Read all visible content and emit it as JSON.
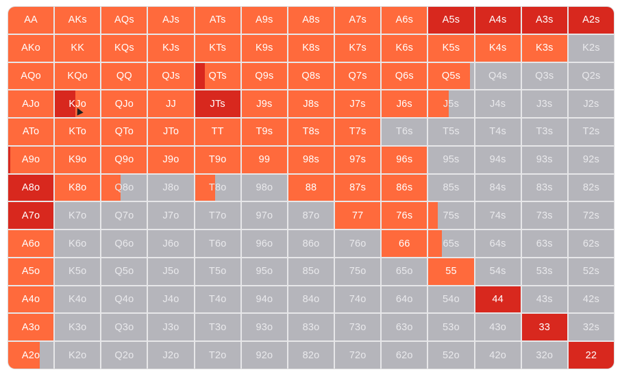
{
  "palette": {
    "orange": "#ff6a3c",
    "red": "#d8281e",
    "mid": "#ea4a2e",
    "gray": "#b5b5bb",
    "text_gray": "#e9e9ec"
  },
  "rows": [
    [
      {
        "l": "AA",
        "f": 1,
        "c": "orange"
      },
      {
        "l": "AKs",
        "f": 1,
        "c": "orange"
      },
      {
        "l": "AQs",
        "f": 1,
        "c": "orange"
      },
      {
        "l": "AJs",
        "f": 1,
        "c": "orange"
      },
      {
        "l": "ATs",
        "f": 1,
        "c": "orange"
      },
      {
        "l": "A9s",
        "f": 1,
        "c": "orange"
      },
      {
        "l": "A8s",
        "f": 1,
        "c": "orange"
      },
      {
        "l": "A7s",
        "f": 1,
        "c": "orange"
      },
      {
        "l": "A6s",
        "f": 1,
        "c": "orange"
      },
      {
        "l": "A5s",
        "f": 1,
        "c": "red"
      },
      {
        "l": "A4s",
        "f": 1,
        "c": "red"
      },
      {
        "l": "A3s",
        "f": 1,
        "c": "red"
      },
      {
        "l": "A2s",
        "f": 1,
        "c": "red"
      }
    ],
    [
      {
        "l": "AKo",
        "f": 1,
        "c": "orange"
      },
      {
        "l": "KK",
        "f": 1,
        "c": "orange"
      },
      {
        "l": "KQs",
        "f": 1,
        "c": "orange"
      },
      {
        "l": "KJs",
        "f": 1,
        "c": "orange"
      },
      {
        "l": "KTs",
        "f": 1,
        "c": "orange"
      },
      {
        "l": "K9s",
        "f": 1,
        "c": "orange"
      },
      {
        "l": "K8s",
        "f": 1,
        "c": "orange"
      },
      {
        "l": "K7s",
        "f": 1,
        "c": "orange"
      },
      {
        "l": "K6s",
        "f": 1,
        "c": "orange"
      },
      {
        "l": "K5s",
        "f": 1,
        "c": "orange"
      },
      {
        "l": "K4s",
        "f": 1,
        "c": "orange"
      },
      {
        "l": "K3s",
        "f": 1,
        "c": "orange"
      },
      {
        "l": "K2s",
        "f": 0,
        "c": "gray"
      }
    ],
    [
      {
        "l": "AQo",
        "f": 1,
        "c": "orange"
      },
      {
        "l": "KQo",
        "f": 1,
        "c": "orange"
      },
      {
        "l": "QQ",
        "f": 1,
        "c": "orange"
      },
      {
        "l": "QJs",
        "f": 1,
        "c": "orange"
      },
      {
        "l": "QTs",
        "f": 1,
        "c": "orange",
        "r": 0.22
      },
      {
        "l": "Q9s",
        "f": 1,
        "c": "orange"
      },
      {
        "l": "Q8s",
        "f": 1,
        "c": "orange"
      },
      {
        "l": "Q7s",
        "f": 1,
        "c": "orange"
      },
      {
        "l": "Q6s",
        "f": 1,
        "c": "orange"
      },
      {
        "l": "Q5s",
        "f": 0.92,
        "c": "orange"
      },
      {
        "l": "Q4s",
        "f": 0,
        "c": "gray"
      },
      {
        "l": "Q3s",
        "f": 0,
        "c": "gray"
      },
      {
        "l": "Q2s",
        "f": 0,
        "c": "gray"
      }
    ],
    [
      {
        "l": "AJo",
        "f": 1,
        "c": "orange"
      },
      {
        "l": "KJo",
        "f": 1,
        "c": "orange",
        "r": 0.45
      },
      {
        "l": "QJo",
        "f": 1,
        "c": "orange"
      },
      {
        "l": "JJ",
        "f": 1,
        "c": "orange"
      },
      {
        "l": "JTs",
        "f": 1,
        "c": "red"
      },
      {
        "l": "J9s",
        "f": 1,
        "c": "orange"
      },
      {
        "l": "J8s",
        "f": 1,
        "c": "orange"
      },
      {
        "l": "J7s",
        "f": 1,
        "c": "orange"
      },
      {
        "l": "J6s",
        "f": 1,
        "c": "orange"
      },
      {
        "l": "J5s",
        "f": 0.45,
        "c": "orange"
      },
      {
        "l": "J4s",
        "f": 0,
        "c": "gray"
      },
      {
        "l": "J3s",
        "f": 0,
        "c": "gray"
      },
      {
        "l": "J2s",
        "f": 0,
        "c": "gray"
      }
    ],
    [
      {
        "l": "ATo",
        "f": 1,
        "c": "orange"
      },
      {
        "l": "KTo",
        "f": 1,
        "c": "orange"
      },
      {
        "l": "QTo",
        "f": 1,
        "c": "orange"
      },
      {
        "l": "JTo",
        "f": 1,
        "c": "orange"
      },
      {
        "l": "TT",
        "f": 1,
        "c": "orange"
      },
      {
        "l": "T9s",
        "f": 1,
        "c": "orange"
      },
      {
        "l": "T8s",
        "f": 1,
        "c": "orange"
      },
      {
        "l": "T7s",
        "f": 1,
        "c": "orange"
      },
      {
        "l": "T6s",
        "f": 0,
        "c": "gray"
      },
      {
        "l": "T5s",
        "f": 0,
        "c": "gray"
      },
      {
        "l": "T4s",
        "f": 0,
        "c": "gray"
      },
      {
        "l": "T3s",
        "f": 0,
        "c": "gray"
      },
      {
        "l": "T2s",
        "f": 0,
        "c": "gray"
      }
    ],
    [
      {
        "l": "A9o",
        "f": 1,
        "c": "orange",
        "r": 0.04
      },
      {
        "l": "K9o",
        "f": 1,
        "c": "orange"
      },
      {
        "l": "Q9o",
        "f": 1,
        "c": "orange"
      },
      {
        "l": "J9o",
        "f": 1,
        "c": "orange"
      },
      {
        "l": "T9o",
        "f": 1,
        "c": "orange"
      },
      {
        "l": "99",
        "f": 1,
        "c": "orange"
      },
      {
        "l": "98s",
        "f": 1,
        "c": "orange"
      },
      {
        "l": "97s",
        "f": 1,
        "c": "orange"
      },
      {
        "l": "96s",
        "f": 1,
        "c": "orange"
      },
      {
        "l": "95s",
        "f": 0,
        "c": "gray"
      },
      {
        "l": "94s",
        "f": 0,
        "c": "gray"
      },
      {
        "l": "93s",
        "f": 0,
        "c": "gray"
      },
      {
        "l": "92s",
        "f": 0,
        "c": "gray"
      }
    ],
    [
      {
        "l": "A8o",
        "f": 1,
        "c": "red"
      },
      {
        "l": "K8o",
        "f": 1,
        "c": "orange"
      },
      {
        "l": "Q8o",
        "f": 0.42,
        "c": "orange"
      },
      {
        "l": "J8o",
        "f": 0,
        "c": "gray"
      },
      {
        "l": "T8o",
        "f": 0.45,
        "c": "orange"
      },
      {
        "l": "98o",
        "f": 0,
        "c": "gray"
      },
      {
        "l": "88",
        "f": 1,
        "c": "orange"
      },
      {
        "l": "87s",
        "f": 1,
        "c": "orange"
      },
      {
        "l": "86s",
        "f": 1,
        "c": "orange"
      },
      {
        "l": "85s",
        "f": 0,
        "c": "gray"
      },
      {
        "l": "84s",
        "f": 0,
        "c": "gray"
      },
      {
        "l": "83s",
        "f": 0,
        "c": "gray"
      },
      {
        "l": "82s",
        "f": 0,
        "c": "gray"
      }
    ],
    [
      {
        "l": "A7o",
        "f": 1,
        "c": "red"
      },
      {
        "l": "K7o",
        "f": 0,
        "c": "gray"
      },
      {
        "l": "Q7o",
        "f": 0,
        "c": "gray"
      },
      {
        "l": "J7o",
        "f": 0,
        "c": "gray"
      },
      {
        "l": "T7o",
        "f": 0,
        "c": "gray"
      },
      {
        "l": "97o",
        "f": 0,
        "c": "gray"
      },
      {
        "l": "87o",
        "f": 0,
        "c": "gray"
      },
      {
        "l": "77",
        "f": 1,
        "c": "orange"
      },
      {
        "l": "76s",
        "f": 1,
        "c": "orange"
      },
      {
        "l": "75s",
        "f": 0.2,
        "c": "orange"
      },
      {
        "l": "74s",
        "f": 0,
        "c": "gray"
      },
      {
        "l": "73s",
        "f": 0,
        "c": "gray"
      },
      {
        "l": "72s",
        "f": 0,
        "c": "gray"
      }
    ],
    [
      {
        "l": "A6o",
        "f": 1,
        "c": "orange"
      },
      {
        "l": "K6o",
        "f": 0,
        "c": "gray"
      },
      {
        "l": "Q6o",
        "f": 0,
        "c": "gray"
      },
      {
        "l": "J6o",
        "f": 0,
        "c": "gray"
      },
      {
        "l": "T6o",
        "f": 0,
        "c": "gray"
      },
      {
        "l": "96o",
        "f": 0,
        "c": "gray"
      },
      {
        "l": "86o",
        "f": 0,
        "c": "gray"
      },
      {
        "l": "76o",
        "f": 0,
        "c": "gray"
      },
      {
        "l": "66",
        "f": 1,
        "c": "orange"
      },
      {
        "l": "65s",
        "f": 0.3,
        "c": "orange"
      },
      {
        "l": "64s",
        "f": 0,
        "c": "gray"
      },
      {
        "l": "63s",
        "f": 0,
        "c": "gray"
      },
      {
        "l": "62s",
        "f": 0,
        "c": "gray"
      }
    ],
    [
      {
        "l": "A5o",
        "f": 1,
        "c": "orange"
      },
      {
        "l": "K5o",
        "f": 0,
        "c": "gray"
      },
      {
        "l": "Q5o",
        "f": 0,
        "c": "gray"
      },
      {
        "l": "J5o",
        "f": 0,
        "c": "gray"
      },
      {
        "l": "T5o",
        "f": 0,
        "c": "gray"
      },
      {
        "l": "95o",
        "f": 0,
        "c": "gray"
      },
      {
        "l": "85o",
        "f": 0,
        "c": "gray"
      },
      {
        "l": "75o",
        "f": 0,
        "c": "gray"
      },
      {
        "l": "65o",
        "f": 0,
        "c": "gray"
      },
      {
        "l": "55",
        "f": 1,
        "c": "orange"
      },
      {
        "l": "54s",
        "f": 0,
        "c": "gray"
      },
      {
        "l": "53s",
        "f": 0,
        "c": "gray"
      },
      {
        "l": "52s",
        "f": 0,
        "c": "gray"
      }
    ],
    [
      {
        "l": "A4o",
        "f": 1,
        "c": "orange"
      },
      {
        "l": "K4o",
        "f": 0,
        "c": "gray"
      },
      {
        "l": "Q4o",
        "f": 0,
        "c": "gray"
      },
      {
        "l": "J4o",
        "f": 0,
        "c": "gray"
      },
      {
        "l": "T4o",
        "f": 0,
        "c": "gray"
      },
      {
        "l": "94o",
        "f": 0,
        "c": "gray"
      },
      {
        "l": "84o",
        "f": 0,
        "c": "gray"
      },
      {
        "l": "74o",
        "f": 0,
        "c": "gray"
      },
      {
        "l": "64o",
        "f": 0,
        "c": "gray"
      },
      {
        "l": "54o",
        "f": 0,
        "c": "gray"
      },
      {
        "l": "44",
        "f": 1,
        "c": "red"
      },
      {
        "l": "43s",
        "f": 0,
        "c": "gray"
      },
      {
        "l": "42s",
        "f": 0,
        "c": "gray"
      }
    ],
    [
      {
        "l": "A3o",
        "f": 1,
        "c": "orange"
      },
      {
        "l": "K3o",
        "f": 0,
        "c": "gray"
      },
      {
        "l": "Q3o",
        "f": 0,
        "c": "gray"
      },
      {
        "l": "J3o",
        "f": 0,
        "c": "gray"
      },
      {
        "l": "T3o",
        "f": 0,
        "c": "gray"
      },
      {
        "l": "93o",
        "f": 0,
        "c": "gray"
      },
      {
        "l": "83o",
        "f": 0,
        "c": "gray"
      },
      {
        "l": "73o",
        "f": 0,
        "c": "gray"
      },
      {
        "l": "63o",
        "f": 0,
        "c": "gray"
      },
      {
        "l": "53o",
        "f": 0,
        "c": "gray"
      },
      {
        "l": "43o",
        "f": 0,
        "c": "gray"
      },
      {
        "l": "33",
        "f": 1,
        "c": "red"
      },
      {
        "l": "32s",
        "f": 0,
        "c": "gray"
      }
    ],
    [
      {
        "l": "A2o",
        "f": 0.7,
        "c": "orange"
      },
      {
        "l": "K2o",
        "f": 0,
        "c": "gray"
      },
      {
        "l": "Q2o",
        "f": 0,
        "c": "gray"
      },
      {
        "l": "J2o",
        "f": 0,
        "c": "gray"
      },
      {
        "l": "T2o",
        "f": 0,
        "c": "gray"
      },
      {
        "l": "92o",
        "f": 0,
        "c": "gray"
      },
      {
        "l": "82o",
        "f": 0,
        "c": "gray"
      },
      {
        "l": "72o",
        "f": 0,
        "c": "gray"
      },
      {
        "l": "62o",
        "f": 0,
        "c": "gray"
      },
      {
        "l": "52o",
        "f": 0,
        "c": "gray"
      },
      {
        "l": "42o",
        "f": 0,
        "c": "gray"
      },
      {
        "l": "32o",
        "f": 0,
        "c": "gray"
      },
      {
        "l": "22",
        "f": 1,
        "c": "red"
      }
    ]
  ]
}
